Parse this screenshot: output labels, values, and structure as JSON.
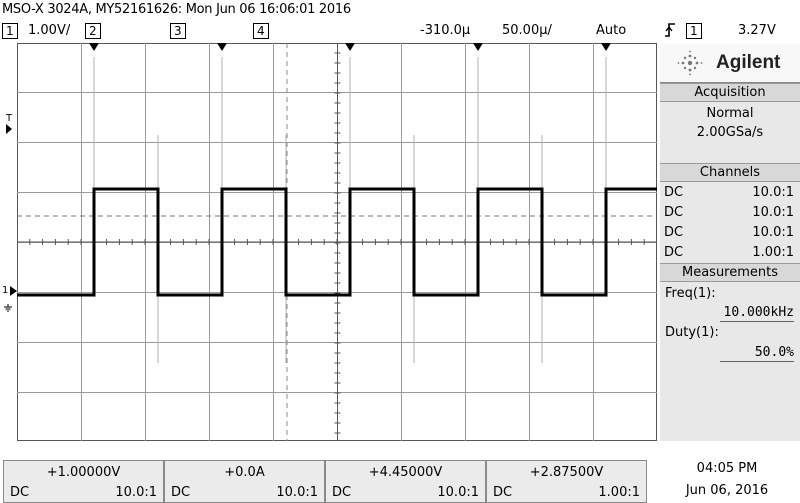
{
  "title": "MSO-X 3024A, MY52161626: Mon Jun 06 16:06:01 2016",
  "status_bar": {
    "ch1_label": "1",
    "ch1_scale": "1.00V/",
    "ch2_label": "2",
    "ch3_label": "3",
    "ch4_label": "4",
    "time_offset": "-310.0µ",
    "time_scale": "50.00µ/",
    "trigger_mode": "Auto",
    "trigger_icon": "rising-edge-icon",
    "trigger_source": "1",
    "trigger_level": "3.27V"
  },
  "waveform": {
    "color": "#000000",
    "high_level_v": 1.0,
    "low_level_v": -1.0,
    "frequency_khz": 10.0,
    "duty_percent": 50.0
  },
  "screen_markers": {
    "trigger_marker": "T",
    "ground_marker": "1"
  },
  "panel": {
    "brand": "Agilent",
    "acquisition_title": "Acquisition",
    "acquisition_mode": "Normal",
    "sample_rate": "2.00GSa/s",
    "channels_title": "Channels",
    "channels": [
      {
        "coupling": "DC",
        "probe": "10.0:1"
      },
      {
        "coupling": "DC",
        "probe": "10.0:1"
      },
      {
        "coupling": "DC",
        "probe": "10.0:1"
      },
      {
        "coupling": "DC",
        "probe": "1.00:1"
      }
    ],
    "measurements_title": "Measurements",
    "measurements": [
      {
        "label": "Freq(1):",
        "value": "10.000kHz"
      },
      {
        "label": "Duty(1):",
        "value": "50.0%"
      }
    ]
  },
  "bottom_channels": [
    {
      "value": "+1.00000V",
      "coupling": "DC",
      "probe": "10.0:1"
    },
    {
      "value": "+0.0A",
      "coupling": "DC",
      "probe": "10.0:1"
    },
    {
      "value": "+4.45000V",
      "coupling": "DC",
      "probe": "10.0:1"
    },
    {
      "value": "+2.87500V",
      "coupling": "DC",
      "probe": "1.00:1"
    }
  ],
  "clock": {
    "time": "04:05 PM",
    "date": "Jun 06, 2016"
  }
}
